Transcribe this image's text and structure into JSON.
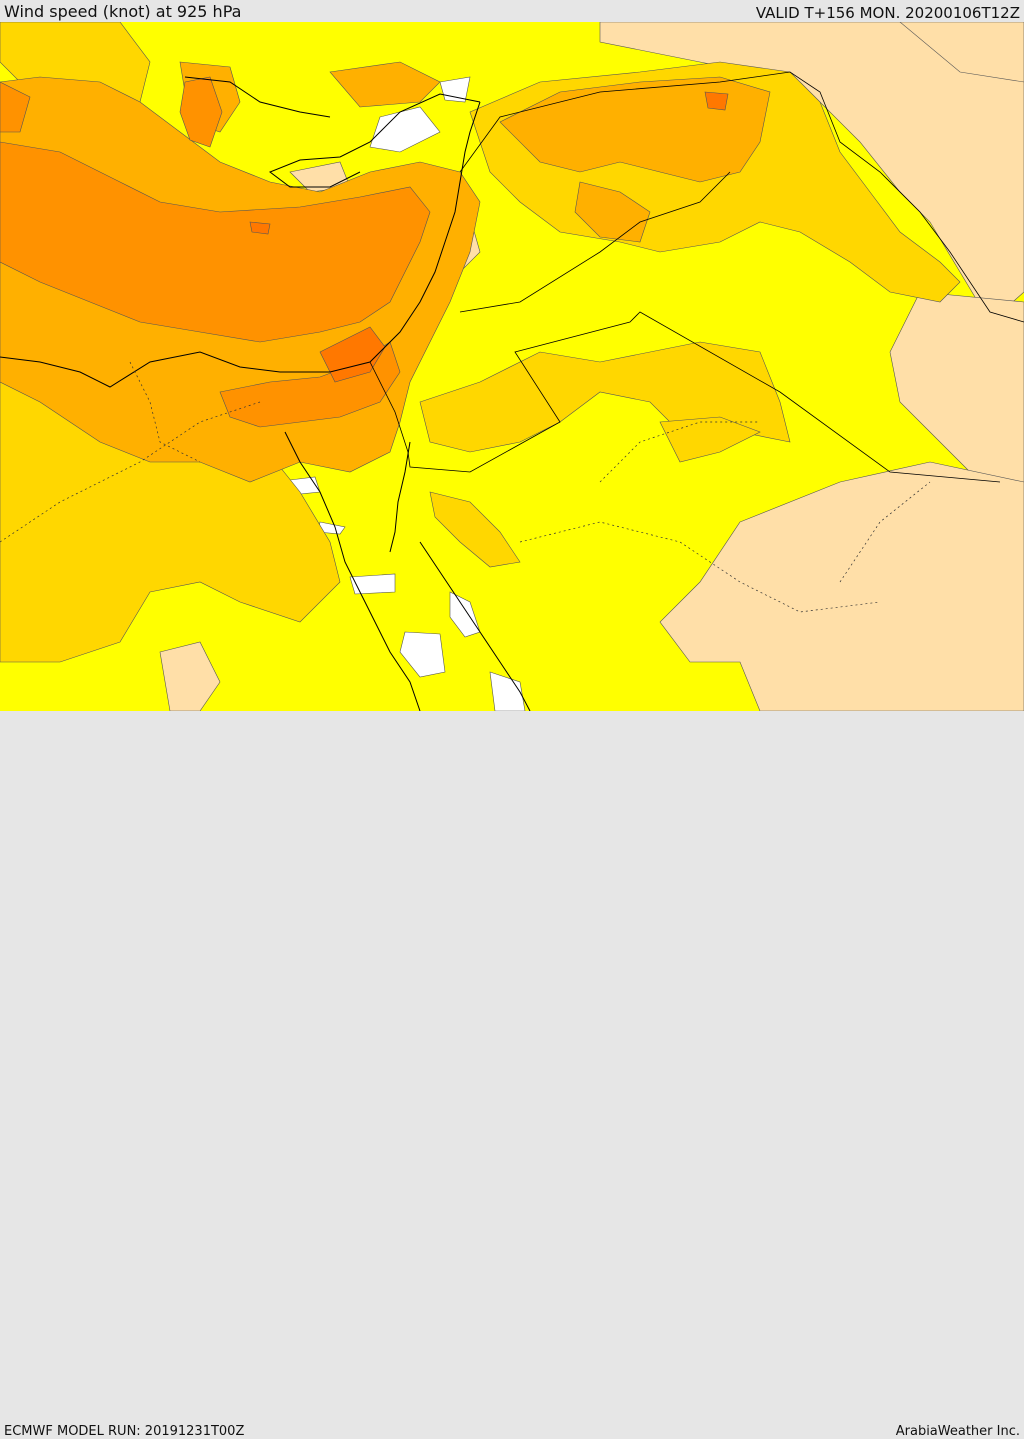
{
  "header": {
    "title": "Wind speed (knot) at 925 hPa",
    "valid": "VALID T+156 MON. 20200106T12Z"
  },
  "footer": {
    "model_run": "ECMWF MODEL RUN: 20191231T00Z",
    "brand": "ArabiaWeather Inc."
  },
  "map": {
    "field": "wind speed 925 hPa",
    "shading_colors": {
      "very_low": "#ffffff",
      "low": "#ffdfa8",
      "light": "#ffff00",
      "moderate": "#ffd700",
      "fresh": "#ffb000",
      "strong": "#ff9200",
      "very_strong": "#ff7800"
    },
    "line_colors": {
      "coast": "#000000",
      "border": "#000000"
    }
  }
}
